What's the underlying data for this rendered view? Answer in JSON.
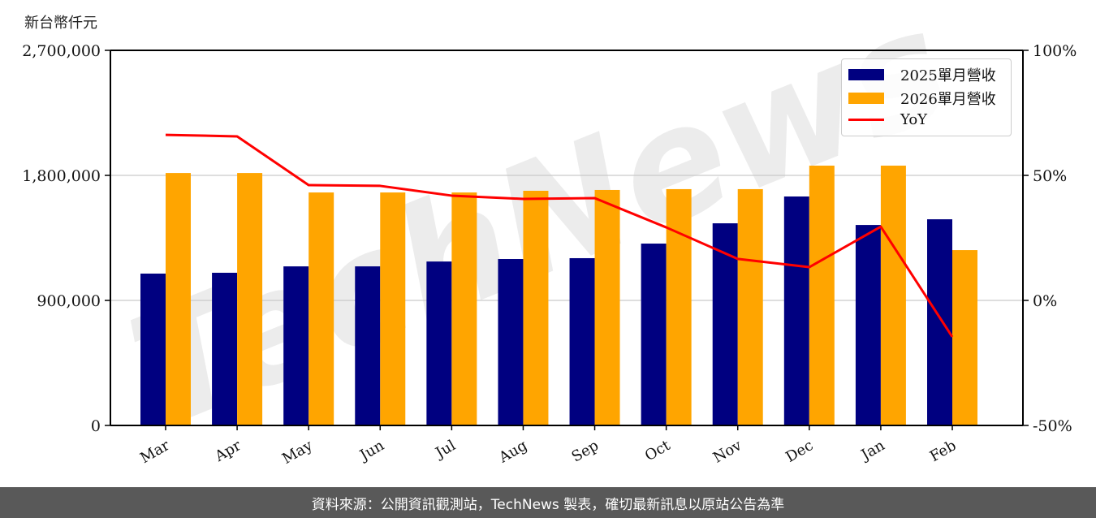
{
  "unit_label": "新台幣仟元",
  "footer": {
    "source_text": "資料來源：公開資訊觀測站，TechNews 製表，確切最新訊息以原站公告為準"
  },
  "legend": {
    "series_2025": "2025單月營收",
    "series_2026": "2026單月營收",
    "yoy": "YoY"
  },
  "colors": {
    "series_2025": "#000080",
    "series_2026": "#FFA500",
    "yoy": "#FF0000",
    "grid": "#d3d3d3",
    "footer_bg": "#595959"
  },
  "watermark": "TechNews",
  "chart_data": {
    "type": "bar",
    "title": "",
    "xlabel": "",
    "ylabel": "新台幣仟元",
    "y2label": "",
    "categories": [
      "Mar",
      "Apr",
      "May",
      "Jun",
      "Jul",
      "Aug",
      "Sep",
      "Oct",
      "Nov",
      "Dec",
      "Jan",
      "Feb"
    ],
    "series": [
      {
        "name": "2025單月營收",
        "type": "bar",
        "axis": "left",
        "values": [
          1093000,
          1099000,
          1145000,
          1145000,
          1180000,
          1198000,
          1204000,
          1309000,
          1455000,
          1648000,
          1443000,
          1484000
        ]
      },
      {
        "name": "2026單月營收",
        "type": "bar",
        "axis": "left",
        "values": [
          1817000,
          1817000,
          1677000,
          1677000,
          1677000,
          1689000,
          1695000,
          1701000,
          1701000,
          1870000,
          1870000,
          1262000
        ]
      },
      {
        "name": "YoY",
        "type": "line",
        "axis": "right",
        "unit": "%",
        "values": [
          66.2,
          65.6,
          46.1,
          45.8,
          41.9,
          40.6,
          40.9,
          29.2,
          16.6,
          13.3,
          29.5,
          -14.6
        ]
      }
    ],
    "ylim": [
      0,
      2700000
    ],
    "yticks": [
      "0",
      "900,000",
      "1,800,000",
      "2,700,000"
    ],
    "y2lim": [
      -50,
      100
    ],
    "y2ticks": [
      "-50%",
      "0%",
      "50%",
      "100%"
    ],
    "grid": true,
    "legend_position": "upper right"
  }
}
